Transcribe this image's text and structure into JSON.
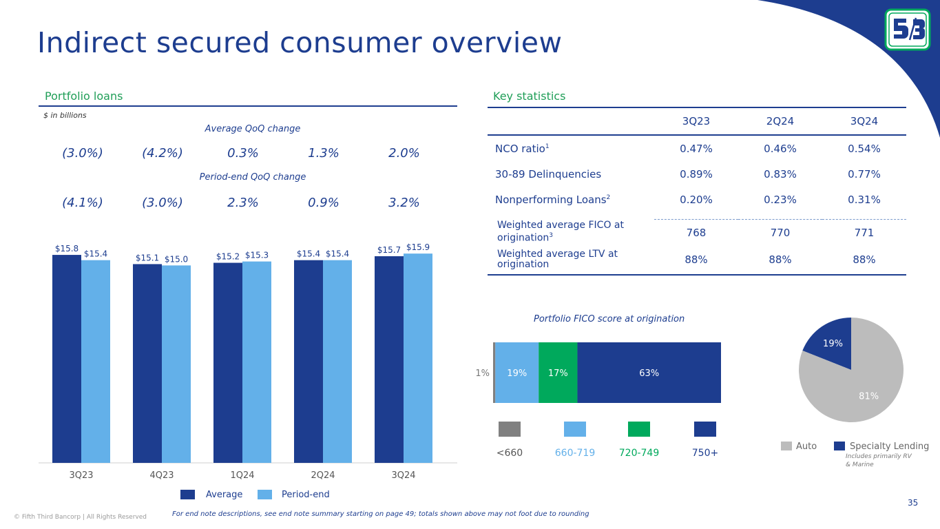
{
  "title": "Indirect secured consumer overview",
  "brand_colors": {
    "navy": "#1d3d8f",
    "light_blue": "#63b0e9",
    "green": "#00a95c",
    "gray": "#808080",
    "pie_gray": "#bcbcbc"
  },
  "logo_icon": "fifth-third-logo-icon",
  "portfolio": {
    "heading": "Portfolio loans",
    "units": "$ in billions",
    "avg_label": "Average QoQ change",
    "avg_changes": [
      "(3.0%)",
      "(4.2%)",
      "0.3%",
      "1.3%",
      "2.0%"
    ],
    "pe_label": "Period-end QoQ change",
    "pe_changes": [
      "(4.1%)",
      "(3.0%)",
      "2.3%",
      "0.9%",
      "3.2%"
    ],
    "legend": {
      "average": "Average",
      "period_end": "Period-end"
    }
  },
  "chart_data": [
    {
      "type": "bar",
      "title": "Portfolio loans",
      "ylabel": "$ in billions",
      "categories": [
        "3Q23",
        "4Q23",
        "1Q24",
        "2Q24",
        "3Q24"
      ],
      "series": [
        {
          "name": "Average",
          "values": [
            15.8,
            15.1,
            15.2,
            15.4,
            15.7
          ],
          "labels": [
            "$15.8",
            "$15.1",
            "$15.2",
            "$15.4",
            "$15.7"
          ]
        },
        {
          "name": "Period-end",
          "values": [
            15.4,
            15.0,
            15.3,
            15.4,
            15.9
          ],
          "labels": [
            "$15.4",
            "$15.0",
            "$15.3",
            "$15.4",
            "$15.9"
          ]
        }
      ],
      "ylim": [
        0,
        16
      ]
    },
    {
      "type": "bar",
      "title": "Portfolio FICO score at origination",
      "orientation": "horizontal-stacked",
      "categories": [
        "<660",
        "660-719",
        "720-749",
        "750+"
      ],
      "values": [
        1,
        19,
        17,
        63
      ],
      "labels": [
        "1%",
        "19%",
        "17%",
        "63%"
      ],
      "colors": [
        "#808080",
        "#63b0e9",
        "#00a95c",
        "#1d3d8f"
      ]
    },
    {
      "type": "pie",
      "categories": [
        "Auto",
        "Specialty Lending"
      ],
      "values": [
        81,
        19
      ],
      "labels": [
        "81%",
        "19%"
      ],
      "colors": [
        "#bcbcbc",
        "#1d3d8f"
      ],
      "legend_note": "Includes primarily RV & Marine"
    }
  ],
  "key_stats": {
    "heading": "Key statistics",
    "columns": [
      "3Q23",
      "2Q24",
      "3Q24"
    ],
    "rows": [
      {
        "label": "NCO ratio",
        "sup": "1",
        "values": [
          "0.47%",
          "0.46%",
          "0.54%"
        ]
      },
      {
        "label": "30-89 Delinquencies",
        "sup": "",
        "values": [
          "0.89%",
          "0.83%",
          "0.77%"
        ]
      },
      {
        "label": "Nonperforming Loans",
        "sup": "2",
        "values": [
          "0.20%",
          "0.23%",
          "0.31%"
        ]
      }
    ],
    "rows2": [
      {
        "label_a": "Weighted average FICO at",
        "label_b": "origination",
        "sup": "3",
        "values": [
          "768",
          "770",
          "771"
        ]
      },
      {
        "label_a": "Weighted average LTV at",
        "label_b": "origination",
        "sup": "",
        "values": [
          "88%",
          "88%",
          "88%"
        ]
      }
    ]
  },
  "footer": {
    "copyright": "© Fifth Third Bancorp | All Rights Reserved",
    "note": "For end note descriptions, see end note summary starting on page 49; totals shown above may not foot due to rounding",
    "page": "35"
  }
}
